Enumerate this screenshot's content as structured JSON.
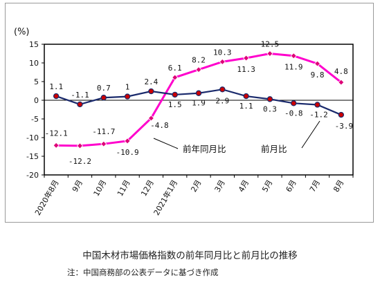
{
  "chart_data": {
    "type": "line",
    "yunit": "(%)",
    "ylim": [
      -20,
      15
    ],
    "yticks": [
      15,
      10,
      5,
      0,
      -5,
      -10,
      -15,
      -20
    ],
    "categories": [
      "2020年8月",
      "9月",
      "10月",
      "11月",
      "12月",
      "2021年1月",
      "2月",
      "3月",
      "4月",
      "5月",
      "6月",
      "7月",
      "8月"
    ],
    "series": [
      {
        "name": "前年同月比",
        "color": "#ff00cc",
        "marker_color": "#dd0077",
        "values": [
          -12.1,
          -12.2,
          -11.7,
          -10.9,
          -4.8,
          6.1,
          8.2,
          10.3,
          11.3,
          12.5,
          11.9,
          9.8,
          4.8
        ],
        "labels": [
          "-12.1",
          "-12.2",
          "-11.7",
          "-10.9",
          "-4.8",
          "6.1",
          "8.2",
          "10.3",
          "11.3",
          "12.5",
          "11.9",
          "9.8",
          "4.8"
        ]
      },
      {
        "name": "前月比",
        "color": "#1a2a6c",
        "marker_color": "#cc0000",
        "values": [
          1.1,
          -1.1,
          0.7,
          1.0,
          2.4,
          1.5,
          1.9,
          2.9,
          1.1,
          0.3,
          -0.8,
          -1.2,
          -3.9
        ],
        "labels": [
          "1.1",
          "-1.1",
          "0.7",
          "1",
          "2.4",
          "1.5",
          "1.9",
          "2.9",
          "1.1",
          "0.3",
          "-0.8",
          "-1.2",
          "-3.9"
        ]
      }
    ],
    "grid": false,
    "legend": "callout-labels"
  },
  "caption": {
    "title": "中国木材市場価格指数の前年同月比と前月比の推移",
    "note": "注：中国商務部の公表データに基づき作成"
  }
}
